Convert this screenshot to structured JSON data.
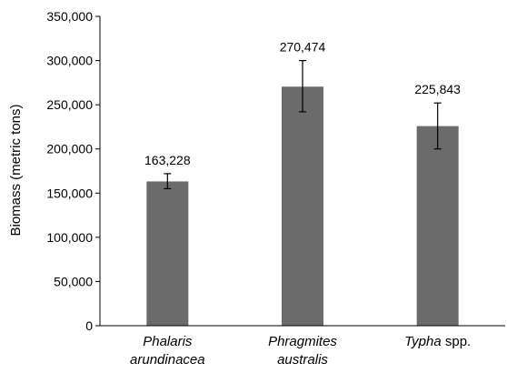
{
  "chart_data": {
    "type": "bar",
    "title": "",
    "xlabel": "",
    "ylabel": "Biomass (metric tons)",
    "ylim": [
      0,
      350000
    ],
    "yticks": [
      0,
      50000,
      100000,
      150000,
      200000,
      250000,
      300000,
      350000
    ],
    "ytick_labels": [
      "0",
      "50,000",
      "100,000",
      "150,000",
      "200,000",
      "250,000",
      "300,000",
      "350,000"
    ],
    "grid": false,
    "categories": [
      {
        "italic": "Phalaris",
        "line2": "arundinacea",
        "line2_italic": true
      },
      {
        "italic": "Phragmites",
        "line2": "australis",
        "line2_italic": true
      },
      {
        "italic": "Typha",
        "line1_suffix": " spp.",
        "line2": "",
        "line2_italic": false
      }
    ],
    "values": [
      163228,
      270474,
      225843
    ],
    "value_labels": [
      "163,228",
      "270,474",
      "225,843"
    ],
    "errors": [
      [
        155000,
        172000
      ],
      [
        242000,
        300000
      ],
      [
        200000,
        252000
      ]
    ],
    "bar_color": "#6b6b6b",
    "axis_color": "#000000"
  }
}
